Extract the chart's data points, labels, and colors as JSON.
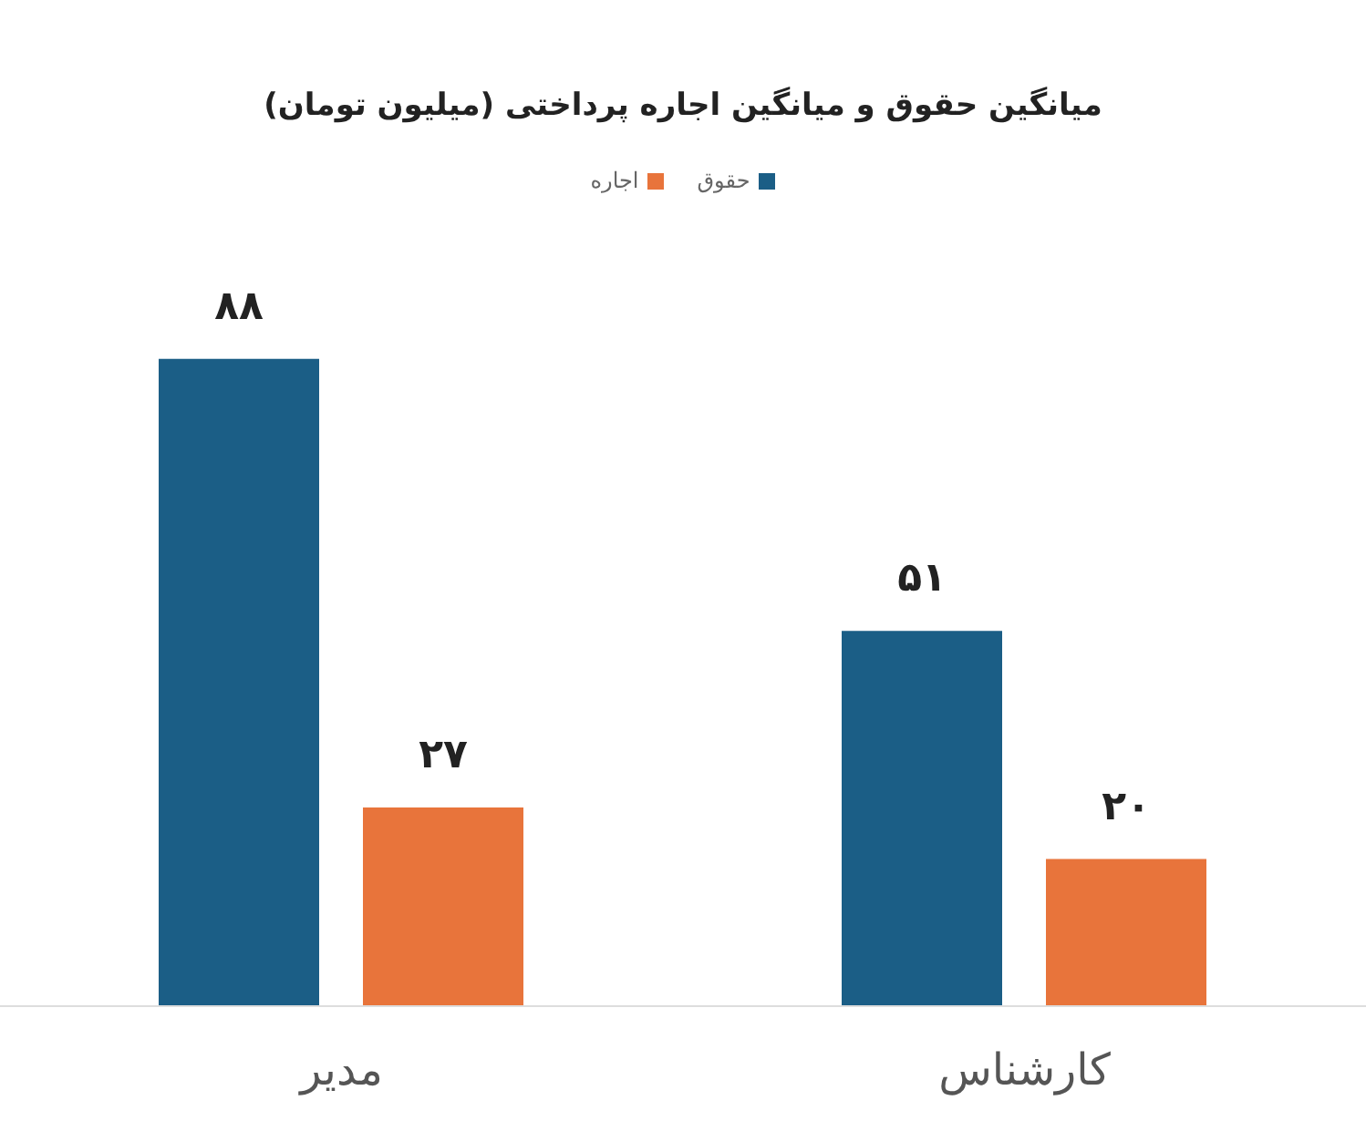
{
  "chart_data": {
    "type": "bar",
    "title": "میانگین حقوق  و میانگین اجاره پرداختی (میلیون تومان)",
    "categories": [
      "مدیر",
      "کارشناس"
    ],
    "series": [
      {
        "name": "حقوق",
        "color": "#1b5e86",
        "values": [
          88,
          51
        ],
        "value_labels": [
          "۸۸",
          "۵۱"
        ]
      },
      {
        "name": "اجاره",
        "color": "#e8743b",
        "values": [
          27,
          20
        ],
        "value_labels": [
          "۲۷",
          "۲۰"
        ]
      }
    ],
    "legend": "top",
    "grid": false
  }
}
